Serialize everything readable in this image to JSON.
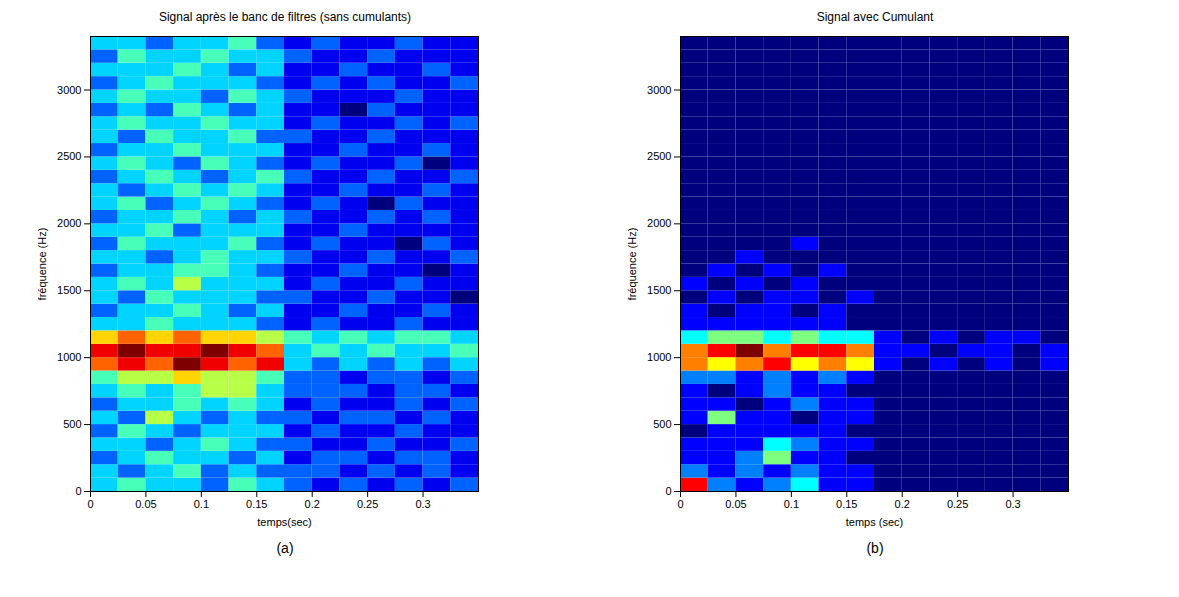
{
  "chart_data": [
    {
      "type": "heatmap",
      "title": "Signal après le banc de filtres (sans cumulants)",
      "panel": "(a)",
      "x_label": "temps(sec)",
      "y_label": "fréquence (Hz)",
      "xlim": [
        0,
        0.35
      ],
      "xticks": [
        0,
        0.05,
        0.1,
        0.15,
        0.2,
        0.25,
        0.3
      ],
      "ylim": [
        0,
        3400
      ],
      "yticks": [
        0,
        500,
        1000,
        1500,
        2000,
        2500,
        3000
      ],
      "cells": {
        "x": [
          0,
          0.025,
          0.05,
          0.075,
          0.1,
          0.125,
          0.15,
          0.175,
          0.2,
          0.225,
          0.25,
          0.275,
          0.3,
          0.325
        ],
        "y": [
          0,
          100,
          200,
          300,
          400,
          500,
          600,
          700,
          800,
          900,
          1000,
          1100,
          1200,
          1300,
          1400,
          1500,
          1600,
          1700,
          1800,
          1900,
          2000,
          2100,
          2200,
          2300,
          2400,
          2500,
          2600,
          2700,
          2800,
          2900,
          3000,
          3100,
          3200,
          3300
        ],
        "values": [
          [
            3,
            4,
            3,
            3,
            2,
            4,
            3,
            2,
            1,
            2,
            1,
            2,
            1,
            2
          ],
          [
            3,
            2,
            3,
            4,
            2,
            3,
            2,
            2,
            2,
            1,
            2,
            1,
            2,
            1
          ],
          [
            2,
            3,
            4,
            3,
            3,
            2,
            3,
            1,
            2,
            2,
            1,
            2,
            2,
            1
          ],
          [
            3,
            3,
            2,
            3,
            4,
            3,
            2,
            2,
            1,
            1,
            2,
            1,
            1,
            2
          ],
          [
            2,
            4,
            3,
            2,
            3,
            3,
            3,
            1,
            2,
            1,
            1,
            2,
            1,
            1
          ],
          [
            3,
            2,
            5,
            3,
            2,
            3,
            2,
            2,
            1,
            2,
            2,
            1,
            2,
            1
          ],
          [
            2,
            3,
            3,
            4,
            3,
            4,
            3,
            1,
            2,
            1,
            1,
            2,
            1,
            2
          ],
          [
            3,
            4,
            3,
            4,
            5,
            5,
            3,
            2,
            2,
            2,
            1,
            2,
            2,
            1
          ],
          [
            4,
            5,
            5,
            6,
            5,
            5,
            4,
            2,
            2,
            1,
            2,
            2,
            1,
            2
          ],
          [
            7,
            8,
            7,
            9,
            8,
            7,
            8,
            3,
            2,
            3,
            2,
            3,
            2,
            3
          ],
          [
            8,
            9,
            8,
            8,
            9,
            8,
            7,
            3,
            4,
            3,
            4,
            3,
            3,
            4
          ],
          [
            6,
            7,
            6,
            7,
            6,
            6,
            5,
            4,
            3,
            4,
            3,
            4,
            4,
            3
          ],
          [
            3,
            3,
            4,
            3,
            3,
            3,
            2,
            1,
            2,
            1,
            1,
            2,
            1,
            1
          ],
          [
            2,
            3,
            3,
            4,
            3,
            2,
            3,
            1,
            1,
            2,
            1,
            1,
            2,
            1
          ],
          [
            3,
            2,
            4,
            3,
            3,
            3,
            2,
            2,
            1,
            1,
            2,
            1,
            1,
            0
          ],
          [
            3,
            4,
            3,
            5,
            3,
            3,
            3,
            1,
            2,
            1,
            1,
            2,
            1,
            1
          ],
          [
            2,
            3,
            3,
            4,
            4,
            3,
            2,
            1,
            1,
            2,
            1,
            1,
            0,
            1
          ],
          [
            3,
            3,
            2,
            3,
            4,
            3,
            3,
            2,
            1,
            1,
            2,
            1,
            1,
            2
          ],
          [
            2,
            4,
            3,
            3,
            3,
            4,
            2,
            1,
            2,
            1,
            1,
            0,
            2,
            1
          ],
          [
            3,
            3,
            4,
            2,
            3,
            3,
            3,
            1,
            1,
            2,
            1,
            1,
            1,
            1
          ],
          [
            2,
            3,
            3,
            4,
            3,
            2,
            3,
            2,
            1,
            1,
            2,
            1,
            2,
            1
          ],
          [
            3,
            4,
            2,
            3,
            4,
            3,
            2,
            1,
            2,
            1,
            0,
            2,
            1,
            1
          ],
          [
            3,
            2,
            3,
            4,
            3,
            4,
            3,
            1,
            1,
            2,
            1,
            1,
            2,
            1
          ],
          [
            2,
            3,
            4,
            3,
            2,
            3,
            4,
            2,
            1,
            1,
            2,
            1,
            1,
            2
          ],
          [
            3,
            4,
            3,
            2,
            4,
            3,
            2,
            1,
            2,
            1,
            1,
            2,
            0,
            1
          ],
          [
            2,
            3,
            3,
            4,
            3,
            3,
            3,
            1,
            1,
            2,
            1,
            1,
            2,
            1
          ],
          [
            3,
            2,
            4,
            3,
            3,
            4,
            2,
            2,
            1,
            1,
            2,
            1,
            1,
            1
          ],
          [
            3,
            4,
            3,
            3,
            4,
            3,
            3,
            1,
            2,
            1,
            1,
            2,
            1,
            2
          ],
          [
            2,
            3,
            2,
            4,
            3,
            2,
            3,
            1,
            1,
            0,
            2,
            1,
            1,
            1
          ],
          [
            3,
            4,
            3,
            3,
            2,
            4,
            3,
            2,
            1,
            1,
            1,
            2,
            1,
            1
          ],
          [
            2,
            3,
            4,
            3,
            3,
            3,
            2,
            1,
            2,
            1,
            2,
            1,
            1,
            2
          ],
          [
            3,
            3,
            3,
            4,
            3,
            2,
            3,
            1,
            1,
            2,
            1,
            1,
            2,
            1
          ],
          [
            2,
            4,
            3,
            3,
            4,
            3,
            3,
            2,
            1,
            1,
            2,
            1,
            1,
            1
          ],
          [
            3,
            3,
            2,
            3,
            3,
            4,
            2,
            1,
            2,
            1,
            1,
            2,
            1,
            1
          ]
        ]
      }
    },
    {
      "type": "heatmap",
      "title": "Signal avec Cumulant",
      "panel": "(b)",
      "x_label": "temps (sec)",
      "y_label": "fréquence (Hz)",
      "xlim": [
        0,
        0.35
      ],
      "xticks": [
        0,
        0.05,
        0.1,
        0.15,
        0.2,
        0.25,
        0.3
      ],
      "ylim": [
        0,
        3400
      ],
      "yticks": [
        0,
        500,
        1000,
        1500,
        2000,
        2500,
        3000
      ],
      "cells": {
        "x": [
          0,
          0.025,
          0.05,
          0.075,
          0.1,
          0.125,
          0.15,
          0.175,
          0.2,
          0.225,
          0.25,
          0.275,
          0.3,
          0.325
        ],
        "y": [
          0,
          100,
          200,
          300,
          400,
          500,
          600,
          700,
          800,
          900,
          1000,
          1100,
          1200,
          1300,
          1400,
          1500,
          1600,
          1700,
          1800,
          1900,
          2000,
          2100,
          2200,
          2300,
          2400,
          2500,
          2600,
          2700,
          2800,
          2900,
          3000,
          3100,
          3200,
          3300
        ],
        "values": [
          [
            7,
            2,
            1,
            2,
            3,
            1,
            1,
            0,
            0,
            0,
            0,
            0,
            0,
            0
          ],
          [
            2,
            1,
            2,
            1,
            2,
            1,
            1,
            0,
            0,
            0,
            0,
            0,
            0,
            0
          ],
          [
            1,
            1,
            2,
            4,
            1,
            1,
            0,
            0,
            0,
            0,
            0,
            0,
            0,
            0
          ],
          [
            1,
            1,
            1,
            3,
            2,
            1,
            1,
            0,
            0,
            0,
            0,
            0,
            0,
            0
          ],
          [
            0,
            1,
            1,
            1,
            1,
            1,
            0,
            0,
            0,
            0,
            0,
            0,
            0,
            0
          ],
          [
            1,
            4,
            1,
            1,
            0,
            1,
            1,
            0,
            0,
            0,
            0,
            0,
            0,
            0
          ],
          [
            1,
            1,
            0,
            1,
            2,
            1,
            1,
            0,
            0,
            0,
            0,
            0,
            0,
            0
          ],
          [
            1,
            0,
            1,
            2,
            1,
            1,
            0,
            0,
            0,
            0,
            0,
            0,
            0,
            0
          ],
          [
            2,
            2,
            1,
            2,
            1,
            2,
            1,
            0,
            0,
            0,
            0,
            0,
            0,
            0
          ],
          [
            6,
            5,
            6,
            7,
            5,
            6,
            5,
            1,
            0,
            1,
            0,
            1,
            0,
            1
          ],
          [
            6,
            7,
            8,
            6,
            7,
            7,
            6,
            1,
            1,
            0,
            1,
            1,
            0,
            1
          ],
          [
            3,
            4,
            4,
            3,
            4,
            3,
            3,
            1,
            0,
            1,
            0,
            1,
            1,
            0
          ],
          [
            1,
            1,
            1,
            1,
            1,
            1,
            0,
            0,
            0,
            0,
            0,
            0,
            0,
            0
          ],
          [
            1,
            0,
            1,
            1,
            0,
            1,
            0,
            0,
            0,
            0,
            0,
            0,
            0,
            0
          ],
          [
            0,
            1,
            0,
            1,
            1,
            0,
            1,
            0,
            0,
            0,
            0,
            0,
            0,
            0
          ],
          [
            1,
            0,
            1,
            0,
            1,
            0,
            0,
            0,
            0,
            0,
            0,
            0,
            0,
            0
          ],
          [
            0,
            1,
            0,
            1,
            0,
            1,
            0,
            0,
            0,
            0,
            0,
            0,
            0,
            0
          ],
          [
            0,
            0,
            1,
            0,
            0,
            0,
            0,
            0,
            0,
            0,
            0,
            0,
            0,
            0
          ],
          [
            0,
            0,
            0,
            0,
            1,
            0,
            0,
            0,
            0,
            0,
            0,
            0,
            0,
            0
          ],
          [
            0,
            0,
            0,
            0,
            0,
            0,
            0,
            0,
            0,
            0,
            0,
            0,
            0,
            0
          ],
          [
            0,
            0,
            0,
            0,
            0,
            0,
            0,
            0,
            0,
            0,
            0,
            0,
            0,
            0
          ],
          [
            0,
            0,
            0,
            0,
            0,
            0,
            0,
            0,
            0,
            0,
            0,
            0,
            0,
            0
          ],
          [
            0,
            0,
            0,
            0,
            0,
            0,
            0,
            0,
            0,
            0,
            0,
            0,
            0,
            0
          ],
          [
            0,
            0,
            0,
            0,
            0,
            0,
            0,
            0,
            0,
            0,
            0,
            0,
            0,
            0
          ],
          [
            0,
            0,
            0,
            0,
            0,
            0,
            0,
            0,
            0,
            0,
            0,
            0,
            0,
            0
          ],
          [
            0,
            0,
            0,
            0,
            0,
            0,
            0,
            0,
            0,
            0,
            0,
            0,
            0,
            0
          ],
          [
            0,
            0,
            0,
            0,
            0,
            0,
            0,
            0,
            0,
            0,
            0,
            0,
            0,
            0
          ],
          [
            0,
            0,
            0,
            0,
            0,
            0,
            0,
            0,
            0,
            0,
            0,
            0,
            0,
            0
          ],
          [
            0,
            0,
            0,
            0,
            0,
            0,
            0,
            0,
            0,
            0,
            0,
            0,
            0,
            0
          ],
          [
            0,
            0,
            0,
            0,
            0,
            0,
            0,
            0,
            0,
            0,
            0,
            0,
            0,
            0
          ],
          [
            0,
            0,
            0,
            0,
            0,
            0,
            0,
            0,
            0,
            0,
            0,
            0,
            0,
            0
          ],
          [
            0,
            0,
            0,
            0,
            0,
            0,
            0,
            0,
            0,
            0,
            0,
            0,
            0,
            0
          ],
          [
            0,
            0,
            0,
            0,
            0,
            0,
            0,
            0,
            0,
            0,
            0,
            0,
            0,
            0
          ],
          [
            0,
            0,
            0,
            0,
            0,
            0,
            0,
            0,
            0,
            0,
            0,
            0,
            0,
            0
          ]
        ]
      }
    }
  ]
}
